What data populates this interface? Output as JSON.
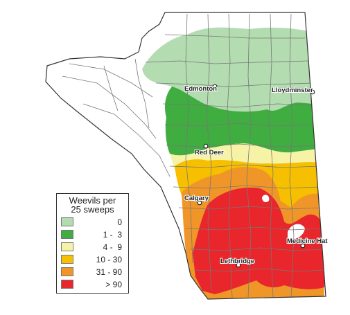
{
  "map": {
    "cities": [
      {
        "name": "Edmonton"
      },
      {
        "name": "Lloydminster"
      },
      {
        "name": "Red Deer"
      },
      {
        "name": "Calgary"
      },
      {
        "name": "Medicine Hat"
      },
      {
        "name": "Lethbridge"
      }
    ]
  },
  "legend": {
    "title_line1": "Weevils per",
    "title_line2": "25 sweeps",
    "classes": [
      {
        "label": "0",
        "color": "#b3dcb0"
      },
      {
        "label": "1 -  3",
        "color": "#3fad3f"
      },
      {
        "label": "4 -  9",
        "color": "#f7f3a6"
      },
      {
        "label": "10 - 30",
        "color": "#f6c000"
      },
      {
        "label": "31 - 90",
        "color": "#f09628"
      },
      {
        "label": "> 90",
        "color": "#e8262b"
      }
    ]
  },
  "colors": {
    "boundary": "#777777",
    "outline": "#333333"
  }
}
